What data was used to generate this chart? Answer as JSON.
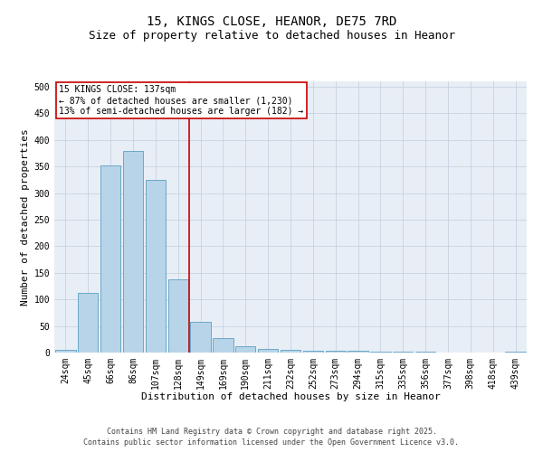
{
  "title": "15, KINGS CLOSE, HEANOR, DE75 7RD",
  "subtitle": "Size of property relative to detached houses in Heanor",
  "xlabel": "Distribution of detached houses by size in Heanor",
  "ylabel": "Number of detached properties",
  "categories": [
    "24sqm",
    "45sqm",
    "66sqm",
    "86sqm",
    "107sqm",
    "128sqm",
    "149sqm",
    "169sqm",
    "190sqm",
    "211sqm",
    "232sqm",
    "252sqm",
    "273sqm",
    "294sqm",
    "315sqm",
    "335sqm",
    "356sqm",
    "377sqm",
    "398sqm",
    "418sqm",
    "439sqm"
  ],
  "values": [
    5,
    112,
    352,
    379,
    325,
    137,
    57,
    27,
    12,
    7,
    5,
    3,
    3,
    3,
    2,
    1,
    1,
    0,
    0,
    0,
    1
  ],
  "bar_color": "#b8d4e8",
  "bar_edge_color": "#5a9fc4",
  "vline_color": "#cc0000",
  "annotation_title": "15 KINGS CLOSE: 137sqm",
  "annotation_line1": "← 87% of detached houses are smaller (1,230)",
  "annotation_line2": "13% of semi-detached houses are larger (182) →",
  "annotation_box_color": "#ffffff",
  "annotation_box_edge_color": "#cc0000",
  "ylim": [
    0,
    510
  ],
  "yticks": [
    0,
    50,
    100,
    150,
    200,
    250,
    300,
    350,
    400,
    450,
    500
  ],
  "background_color": "#e8eef5",
  "footnote1": "Contains HM Land Registry data © Crown copyright and database right 2025.",
  "footnote2": "Contains public sector information licensed under the Open Government Licence v3.0.",
  "title_fontsize": 10,
  "subtitle_fontsize": 9,
  "axis_label_fontsize": 8,
  "tick_fontsize": 7,
  "annotation_fontsize": 7,
  "footnote_fontsize": 6
}
